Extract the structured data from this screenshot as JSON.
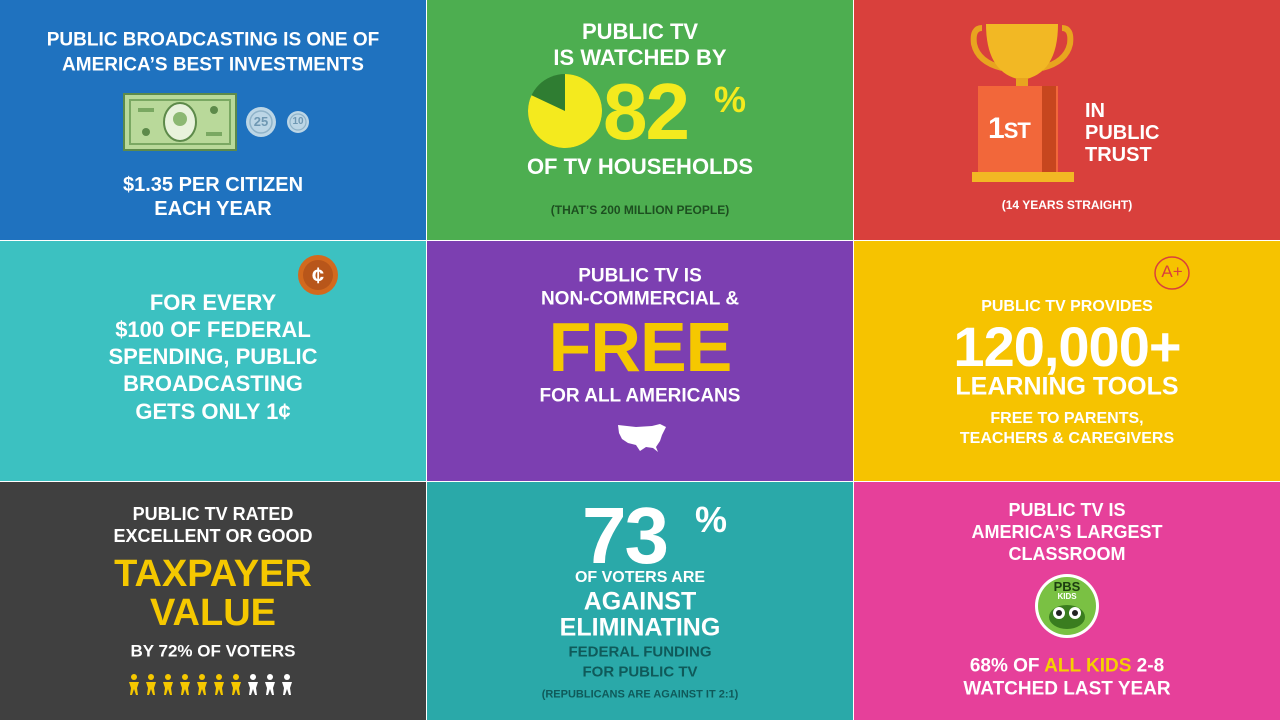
{
  "tiles": [
    {
      "headline": [
        "PUBLIC BROADCASTING IS ONE OF",
        "AMERICA’S BEST INVESTMENTS"
      ],
      "coins": [
        "25",
        "10"
      ],
      "caption": [
        "$1.35 PER CITIZEN",
        "EACH YEAR"
      ]
    },
    {
      "headline": [
        "PUBLIC TV",
        "IS WATCHED BY"
      ],
      "percent": 82,
      "percent_sign": "%",
      "caption": "OF TV HOUSEHOLDS",
      "note": "(THAT’S 200 MILLION PEOPLE)"
    },
    {
      "rank": "1",
      "rank_suffix": "ST",
      "label": [
        "IN",
        "PUBLIC",
        "TRUST"
      ],
      "note": "(14 YEARS STRAIGHT)"
    },
    {
      "icon": "¢",
      "lines": [
        "FOR EVERY",
        "$100 OF FEDERAL",
        "SPENDING, PUBLIC",
        "BROADCASTING",
        "GETS ONLY 1¢"
      ]
    },
    {
      "headline": [
        "PUBLIC TV IS",
        "NON-COMMERCIAL &"
      ],
      "highlight": "FREE",
      "caption": "FOR ALL AMERICANS"
    },
    {
      "stamp": "A+",
      "headline": "PUBLIC TV PROVIDES",
      "figure": "120,000+",
      "subject": "LEARNING TOOLS",
      "caption": [
        "FREE TO PARENTS,",
        "TEACHERS & CAREGIVERS"
      ]
    },
    {
      "headline": [
        "PUBLIC TV RATED",
        "EXCELLENT OR GOOD"
      ],
      "highlight": [
        "TAXPAYER",
        "VALUE"
      ],
      "caption": "BY 72% OF VOTERS"
    },
    {
      "percent": 73,
      "percent_sign": "%",
      "lines": [
        "OF VOTERS ARE"
      ],
      "highlight": [
        "AGAINST",
        "ELIMINATING"
      ],
      "detail": [
        "FEDERAL FUNDING",
        "FOR PUBLIC TV"
      ],
      "note": "(REPUBLICANS ARE AGAINST IT 2:1)"
    },
    {
      "headline": [
        "PUBLIC TV IS",
        "AMERICA’S LARGEST",
        "CLASSROOM"
      ],
      "logo": [
        "PBS",
        "KIDS"
      ],
      "caption": [
        "68% OF",
        "ALL KIDS",
        "2-8"
      ],
      "caption2": "WATCHED LAST YEAR"
    }
  ]
}
